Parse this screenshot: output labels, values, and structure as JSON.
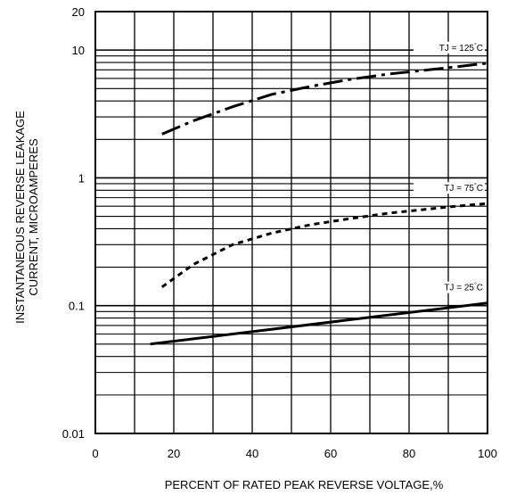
{
  "chart_data": {
    "type": "line",
    "title": "",
    "xlabel": "PERCENT OF RATED PEAK REVERSE VOLTAGE,%",
    "ylabel_lines": [
      "INSTANTANEOUS REVERSE LEAKAGE",
      "CURRENT, MICROAMPERES"
    ],
    "xlim": [
      0,
      100
    ],
    "ylim": [
      0.01,
      20
    ],
    "yscale": "log",
    "grid": true,
    "x_ticks": [
      "0",
      "20",
      "40",
      "60",
      "80",
      "100"
    ],
    "y_ticks": [
      {
        "value": 20,
        "label": "20"
      },
      {
        "value": 10,
        "label": "10"
      },
      {
        "value": 1,
        "label": "1"
      },
      {
        "value": 0.1,
        "label": "0.1"
      },
      {
        "value": 0.01,
        "label": "0.01"
      }
    ],
    "series": [
      {
        "name": "TJ = 125°C",
        "label_parts": [
          "TJ = 125",
          "°",
          "C"
        ],
        "style": "dash-dot",
        "color": "#000000",
        "x": [
          17,
          25,
          35,
          45,
          55,
          65,
          75,
          85,
          92,
          100
        ],
        "y": [
          2.2,
          2.8,
          3.6,
          4.5,
          5.2,
          5.9,
          6.5,
          7.0,
          7.4,
          7.9
        ]
      },
      {
        "name": "TJ = 75°C",
        "label_parts": [
          "TJ = 75",
          "°",
          "C"
        ],
        "style": "dotted",
        "color": "#000000",
        "x": [
          17,
          25,
          35,
          45,
          55,
          65,
          75,
          85,
          92,
          100
        ],
        "y": [
          0.14,
          0.21,
          0.3,
          0.37,
          0.43,
          0.48,
          0.53,
          0.57,
          0.6,
          0.63
        ]
      },
      {
        "name": "TJ = 25°C",
        "label_parts": [
          "TJ = 25",
          "°",
          "C"
        ],
        "style": "solid",
        "color": "#000000",
        "x": [
          14,
          100
        ],
        "y": [
          0.05,
          0.105
        ]
      }
    ]
  }
}
